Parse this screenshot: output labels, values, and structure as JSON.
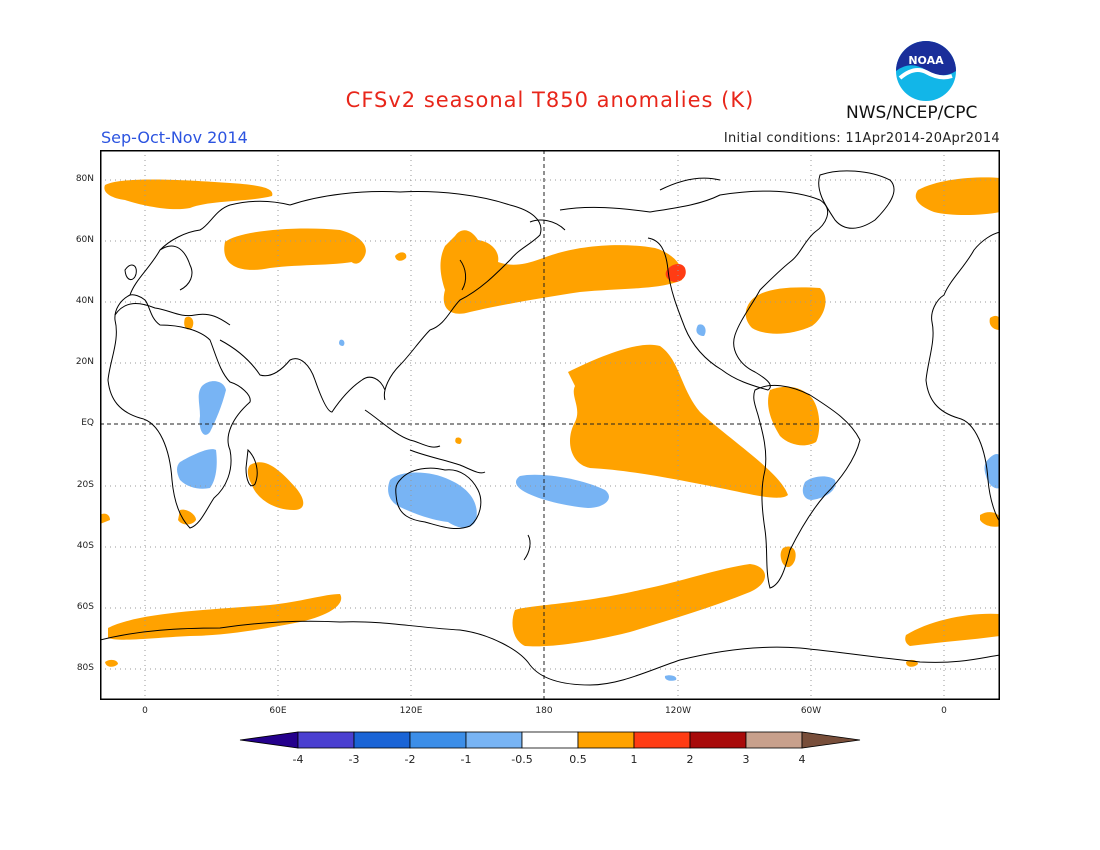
{
  "header": {
    "title": "CFSv2 seasonal T850 anomalies (K)",
    "agency": "NWS/NCEP/CPC",
    "logo_text": "NOAA",
    "season": "Sep-Oct-Nov 2014",
    "initial_conditions": "Initial conditions: 11Apr2014-20Apr2014"
  },
  "map": {
    "projection": "cylindrical equidistant, 0-360 shifted, centered on 180",
    "grid": "dotted",
    "lat_labels": [
      "80N",
      "60N",
      "40N",
      "20N",
      "EQ",
      "20S",
      "40S",
      "60S",
      "80S"
    ],
    "lon_labels": [
      "0",
      "60E",
      "120E",
      "180",
      "120W",
      "60W",
      "0"
    ],
    "anomaly_regions": [
      {
        "name": "North Atlantic / Greenland Sea",
        "category": "0.5 to 1"
      },
      {
        "name": "Central Siberia",
        "category": "0.5 to 1"
      },
      {
        "name": "Northwest Pacific / Japan / Kamchatka",
        "category": "0.5 to 1"
      },
      {
        "name": "North Pacific / Alaska / western Canada",
        "category": "0.5 to 1"
      },
      {
        "name": "Interior western Canada",
        "category": "1 to 2"
      },
      {
        "name": "Western North Atlantic off US East Coast",
        "category": "0.5 to 1"
      },
      {
        "name": "Central and eastern tropical Pacific",
        "category": "0.5 to 1"
      },
      {
        "name": "Northern South America",
        "category": "0.5 to 1"
      },
      {
        "name": "Southwest Indian Ocean / Madagascar",
        "category": "0.5 to 1"
      },
      {
        "name": "Southern Africa tip",
        "category": "0.5 to 1"
      },
      {
        "name": "Southern Ocean south of Africa and Indian Ocean",
        "category": "0.5 to 1"
      },
      {
        "name": "South Pacific Southern Ocean",
        "category": "0.5 to 1"
      },
      {
        "name": "Patagonia",
        "category": "0.5 to 1"
      },
      {
        "name": "East Africa",
        "category": "-1 to -0.5"
      },
      {
        "name": "South-central Africa",
        "category": "-1 to -0.5"
      },
      {
        "name": "Australia",
        "category": "-1 to -0.5"
      },
      {
        "name": "Southwest tropical Pacific",
        "category": "-1 to -0.5"
      },
      {
        "name": "Central Brazil",
        "category": "-1 to -0.5"
      }
    ]
  },
  "legend": {
    "tick_labels": [
      "-4",
      "-3",
      "-2",
      "-1",
      "-0.5",
      "0.5",
      "1",
      "2",
      "3",
      "4"
    ],
    "colors": [
      "#24008c",
      "#4a3fd0",
      "#1a64d6",
      "#3c8ee8",
      "#78b4f4",
      "#ffffff",
      "#ffa200",
      "#ff3c14",
      "#a80a0a",
      "#c8a08c",
      "#784e3a"
    ]
  }
}
